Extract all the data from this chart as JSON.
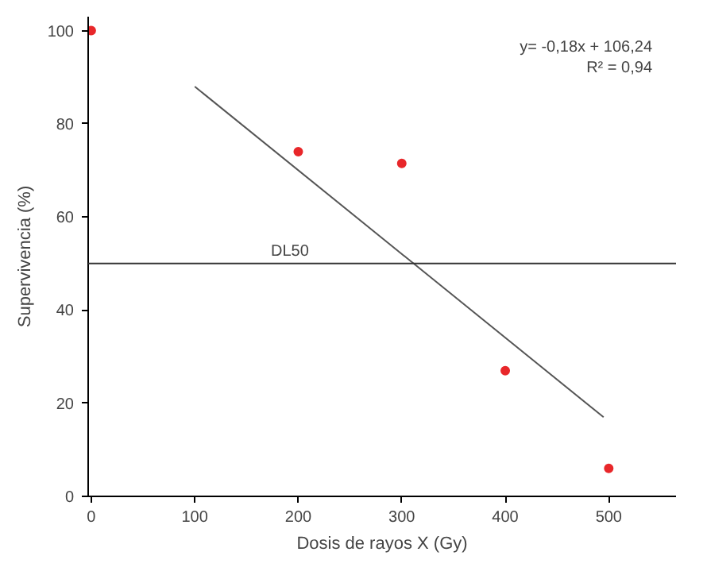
{
  "chart_data": {
    "type": "scatter",
    "xlabel": "Dosis de rayos X (Gy)",
    "ylabel": "Supervivencia (%)",
    "x": [
      0,
      200,
      300,
      400,
      500
    ],
    "series": [
      {
        "color": "#e8272a",
        "marker": "circle",
        "values": [
          100,
          74,
          71.5,
          27,
          6
        ]
      },
      {
        "type": "line",
        "color": "#555555",
        "x": [
          100,
          495
        ],
        "values": [
          88,
          17
        ]
      }
    ],
    "xlim": [
      -3,
      565
    ],
    "ylim": [
      0,
      103
    ],
    "xticks": [
      0,
      100,
      200,
      300,
      400,
      500
    ],
    "yticks": [
      0,
      20,
      40,
      60,
      80,
      100
    ],
    "ref_lines": [
      {
        "axis": "y",
        "value": 50,
        "label": "DL50",
        "color": "#333333"
      }
    ],
    "annotations": [
      "y= -0,18x + 106,24",
      "R² = 0,94"
    ],
    "grid": false
  }
}
